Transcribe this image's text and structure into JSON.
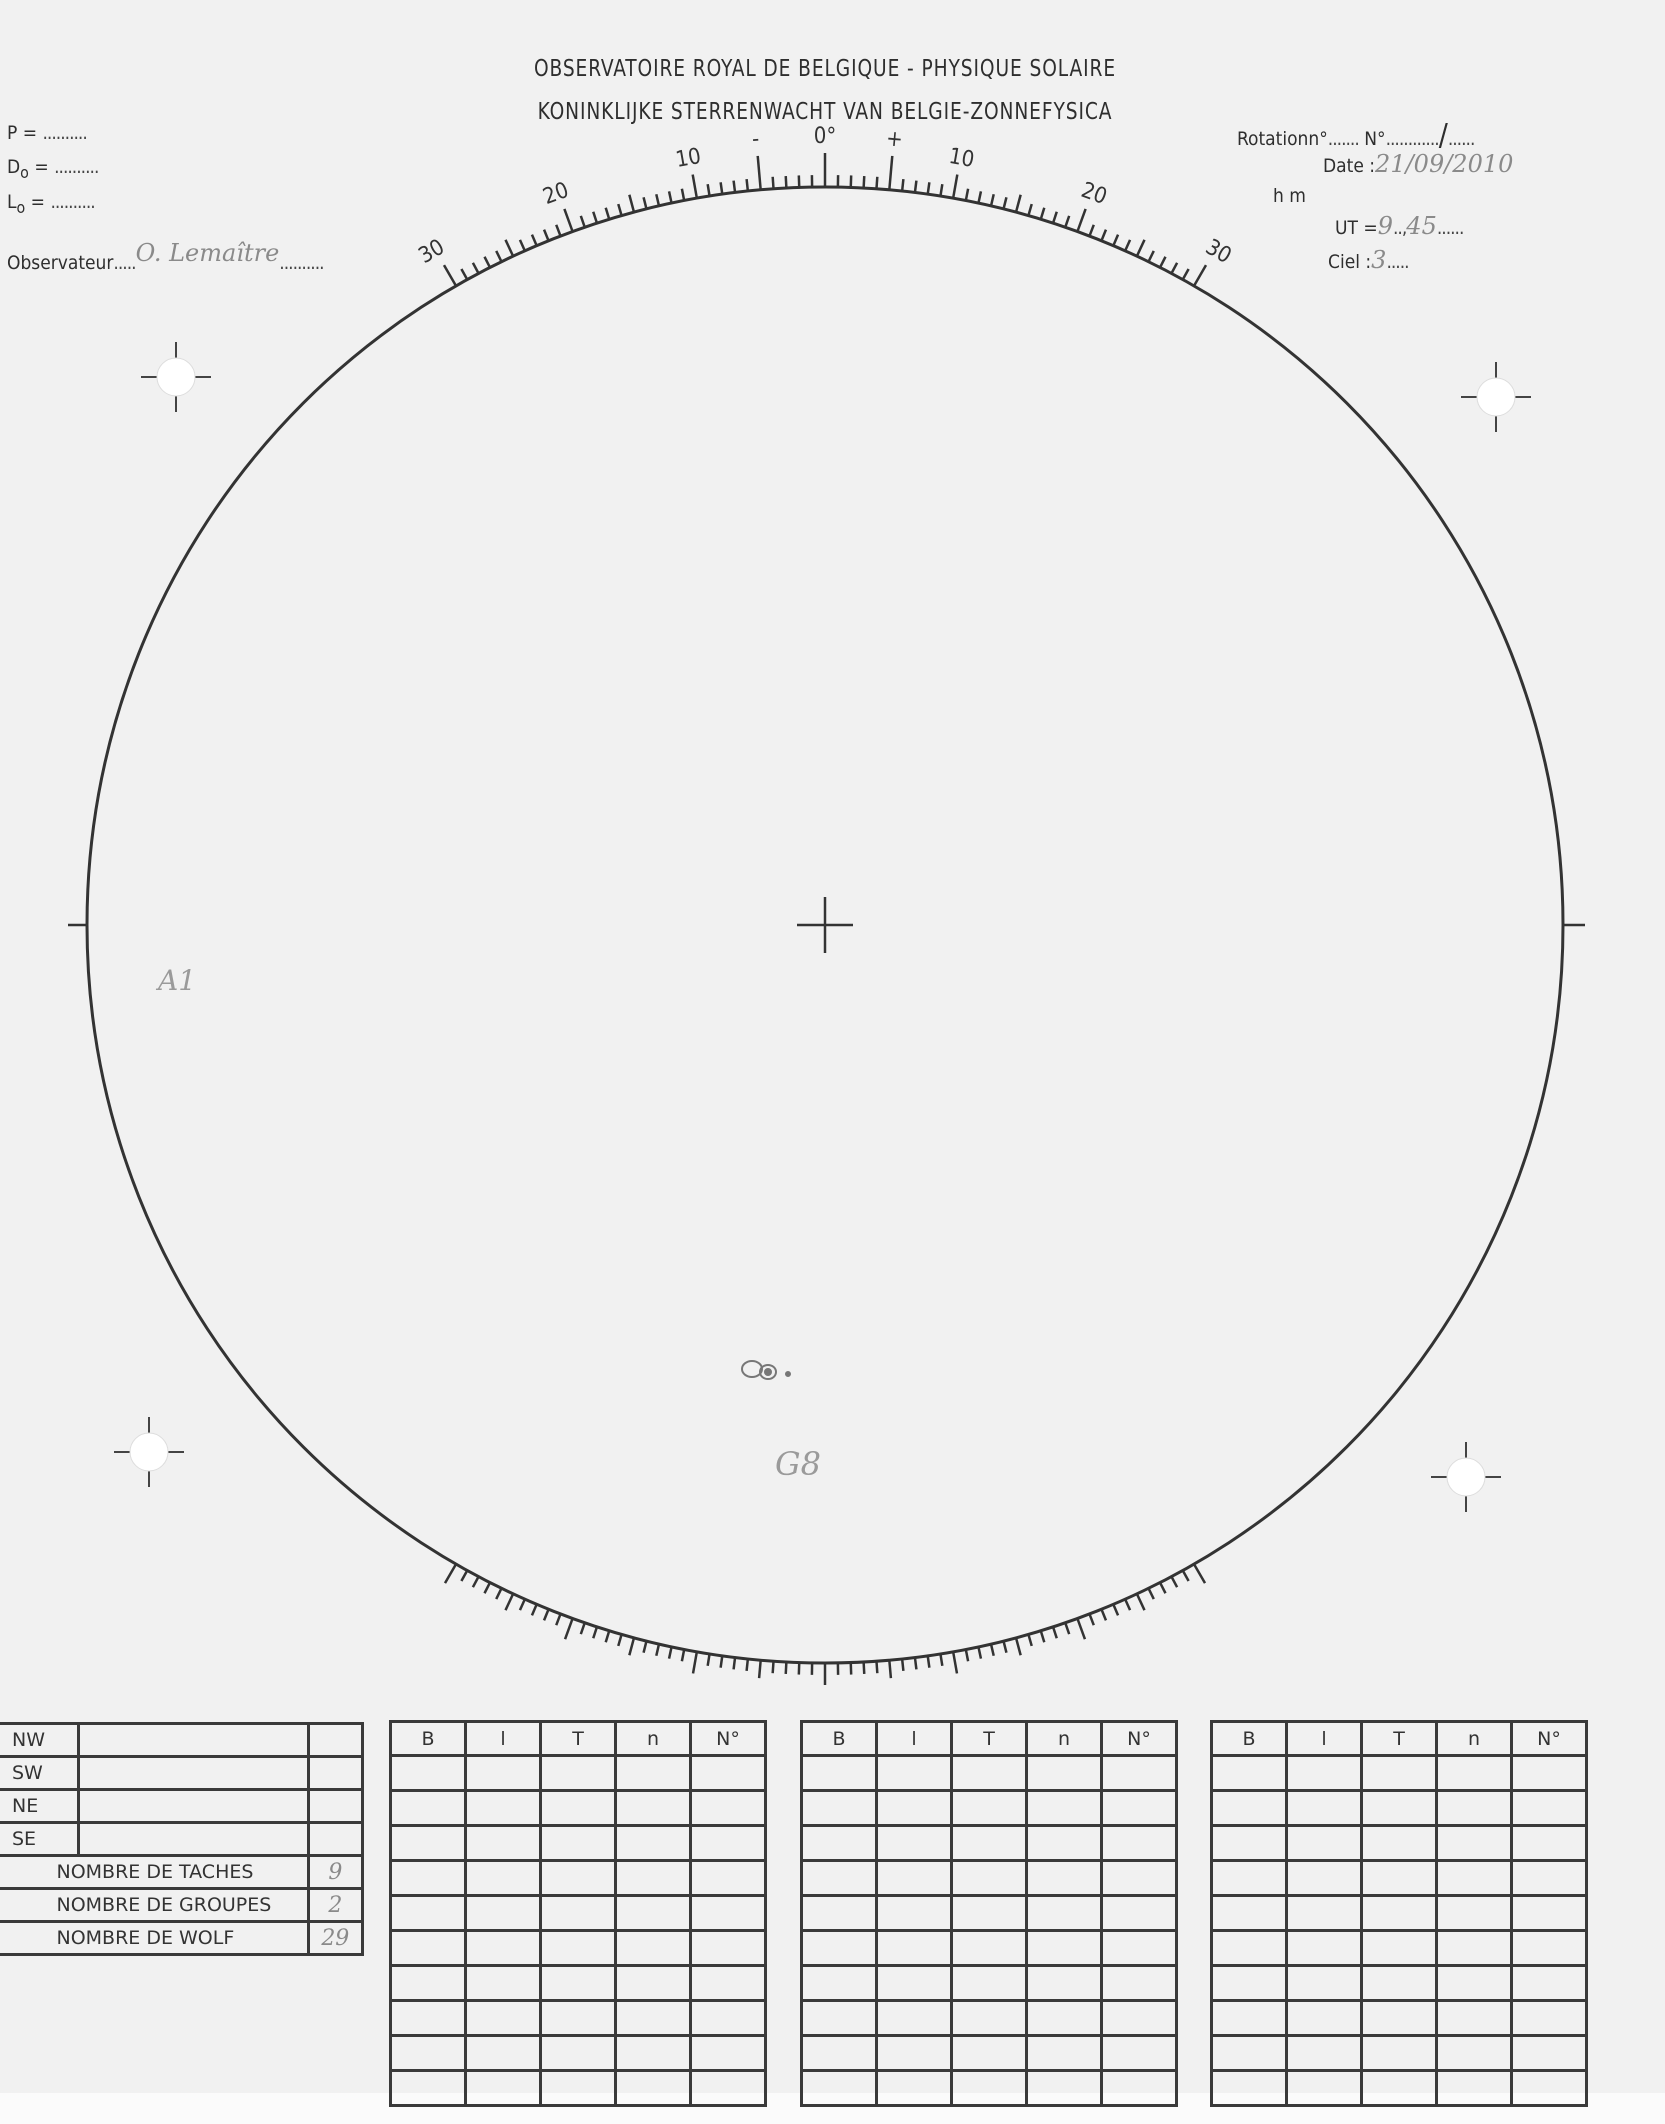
{
  "header": {
    "title_fr": "OBSERVATOIRE ROYAL DE  BELGIQUE - PHYSIQUE SOLAIRE",
    "title_nl": "KONINKLIJKE  STERRENWACHT VAN BELGIE-ZONNEFYSICA"
  },
  "left_fields": {
    "p_label": "P =",
    "d0_label": "D",
    "l0_label": "L",
    "sub0": "o",
    "eq": " =",
    "blank": "..........",
    "observer_label": "Observateur",
    "observer_value": "O. Lemaître"
  },
  "right_fields": {
    "rotation_label": "Rotationn°",
    "number_label": "N°",
    "number_value": "/",
    "date_label": "Date :",
    "date_value": "21/09/2010",
    "hm_label": "h   m",
    "ut_label": "UT =",
    "ut_hours": "9",
    "ut_minutes": "45",
    "sky_label": "Ciel :",
    "sky_value": "3"
  },
  "scale": {
    "range_deg": [
      -30,
      30
    ],
    "labels": {
      "left30": "30",
      "left20": "20",
      "left10": "10",
      "minus": "-",
      "zero": "0°",
      "plus": "+",
      "right10": "10",
      "right20": "20",
      "right30": "30"
    }
  },
  "drawing_annotations": {
    "region_a": "A1",
    "group": "G8"
  },
  "summary_table": {
    "quadrants": [
      "NW",
      "SW",
      "NE",
      "SE"
    ],
    "counts": [
      {
        "label": "NOMBRE DE TACHES",
        "value": "9"
      },
      {
        "label": "NOMBRE DE GROUPES",
        "value": "2"
      },
      {
        "label": "NOMBRE DE WOLF",
        "value": "29"
      }
    ]
  },
  "data_tables": {
    "columns": [
      "B",
      "l",
      "T",
      "n",
      "N°"
    ]
  }
}
